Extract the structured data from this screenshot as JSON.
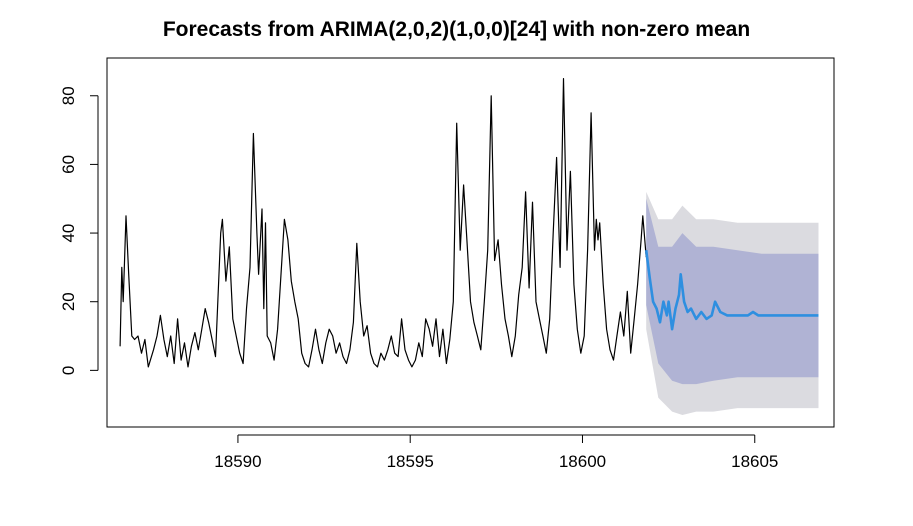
{
  "chart_data": {
    "type": "line",
    "title": "Forecasts from ARIMA(2,0,2)(1,0,0)[24] with non-zero mean",
    "xlabel": "",
    "ylabel": "",
    "xlim": [
      18586.2,
      18607.3
    ],
    "ylim": [
      -16.5,
      91
    ],
    "x_ticks": [
      18590,
      18595,
      18600,
      18605
    ],
    "y_ticks": [
      0,
      20,
      40,
      60,
      80
    ],
    "grid": false,
    "legend": "none",
    "series": [
      {
        "role": "observed",
        "color": "#000000",
        "points": [
          [
            18586.58,
            7
          ],
          [
            18586.63,
            30
          ],
          [
            18586.67,
            20
          ],
          [
            18586.75,
            45
          ],
          [
            18586.83,
            28
          ],
          [
            18586.92,
            10
          ],
          [
            18587.0,
            9
          ],
          [
            18587.1,
            10
          ],
          [
            18587.2,
            5
          ],
          [
            18587.3,
            9
          ],
          [
            18587.4,
            1
          ],
          [
            18587.55,
            6
          ],
          [
            18587.65,
            10
          ],
          [
            18587.75,
            16
          ],
          [
            18587.85,
            9
          ],
          [
            18587.95,
            4
          ],
          [
            18588.05,
            10
          ],
          [
            18588.15,
            2
          ],
          [
            18588.25,
            15
          ],
          [
            18588.35,
            3
          ],
          [
            18588.45,
            8
          ],
          [
            18588.55,
            1
          ],
          [
            18588.65,
            7
          ],
          [
            18588.75,
            11
          ],
          [
            18588.85,
            6
          ],
          [
            18588.95,
            12
          ],
          [
            18589.05,
            18
          ],
          [
            18589.15,
            14
          ],
          [
            18589.25,
            9
          ],
          [
            18589.35,
            4
          ],
          [
            18589.5,
            40
          ],
          [
            18589.55,
            44
          ],
          [
            18589.65,
            26
          ],
          [
            18589.75,
            36
          ],
          [
            18589.85,
            15
          ],
          [
            18589.95,
            10
          ],
          [
            18590.05,
            5
          ],
          [
            18590.15,
            2
          ],
          [
            18590.25,
            18
          ],
          [
            18590.35,
            30
          ],
          [
            18590.45,
            69
          ],
          [
            18590.55,
            40
          ],
          [
            18590.6,
            28
          ],
          [
            18590.7,
            47
          ],
          [
            18590.75,
            18
          ],
          [
            18590.8,
            43
          ],
          [
            18590.85,
            10
          ],
          [
            18590.95,
            8
          ],
          [
            18591.05,
            3
          ],
          [
            18591.15,
            12
          ],
          [
            18591.25,
            28
          ],
          [
            18591.35,
            44
          ],
          [
            18591.45,
            38
          ],
          [
            18591.55,
            26
          ],
          [
            18591.65,
            20
          ],
          [
            18591.75,
            15
          ],
          [
            18591.85,
            5
          ],
          [
            18591.95,
            2
          ],
          [
            18592.05,
            1
          ],
          [
            18592.15,
            6
          ],
          [
            18592.25,
            12
          ],
          [
            18592.35,
            6
          ],
          [
            18592.45,
            2
          ],
          [
            18592.55,
            8
          ],
          [
            18592.65,
            12
          ],
          [
            18592.75,
            10
          ],
          [
            18592.85,
            5
          ],
          [
            18592.95,
            8
          ],
          [
            18593.05,
            4
          ],
          [
            18593.15,
            2
          ],
          [
            18593.25,
            6
          ],
          [
            18593.35,
            14
          ],
          [
            18593.45,
            37
          ],
          [
            18593.55,
            20
          ],
          [
            18593.65,
            10
          ],
          [
            18593.75,
            13
          ],
          [
            18593.85,
            5
          ],
          [
            18593.95,
            2
          ],
          [
            18594.05,
            1
          ],
          [
            18594.15,
            5
          ],
          [
            18594.25,
            3
          ],
          [
            18594.35,
            6
          ],
          [
            18594.45,
            10
          ],
          [
            18594.55,
            5
          ],
          [
            18594.65,
            4
          ],
          [
            18594.75,
            15
          ],
          [
            18594.85,
            6
          ],
          [
            18594.95,
            3
          ],
          [
            18595.05,
            1
          ],
          [
            18595.15,
            3
          ],
          [
            18595.25,
            8
          ],
          [
            18595.35,
            4
          ],
          [
            18595.45,
            15
          ],
          [
            18595.55,
            12
          ],
          [
            18595.65,
            7
          ],
          [
            18595.75,
            15
          ],
          [
            18595.85,
            4
          ],
          [
            18595.95,
            12
          ],
          [
            18596.05,
            2
          ],
          [
            18596.15,
            9
          ],
          [
            18596.25,
            20
          ],
          [
            18596.35,
            72
          ],
          [
            18596.45,
            35
          ],
          [
            18596.55,
            54
          ],
          [
            18596.65,
            37
          ],
          [
            18596.75,
            20
          ],
          [
            18596.85,
            14
          ],
          [
            18596.95,
            10
          ],
          [
            18597.05,
            6
          ],
          [
            18597.15,
            20
          ],
          [
            18597.25,
            35
          ],
          [
            18597.35,
            80
          ],
          [
            18597.45,
            32
          ],
          [
            18597.55,
            38
          ],
          [
            18597.65,
            25
          ],
          [
            18597.75,
            15
          ],
          [
            18597.85,
            10
          ],
          [
            18597.95,
            4
          ],
          [
            18598.05,
            10
          ],
          [
            18598.15,
            22
          ],
          [
            18598.25,
            30
          ],
          [
            18598.35,
            52
          ],
          [
            18598.45,
            24
          ],
          [
            18598.55,
            49
          ],
          [
            18598.65,
            20
          ],
          [
            18598.75,
            15
          ],
          [
            18598.85,
            10
          ],
          [
            18598.95,
            5
          ],
          [
            18599.05,
            15
          ],
          [
            18599.15,
            40
          ],
          [
            18599.25,
            62
          ],
          [
            18599.35,
            30
          ],
          [
            18599.45,
            85
          ],
          [
            18599.55,
            35
          ],
          [
            18599.65,
            58
          ],
          [
            18599.75,
            25
          ],
          [
            18599.85,
            12
          ],
          [
            18599.95,
            5
          ],
          [
            18600.05,
            10
          ],
          [
            18600.15,
            35
          ],
          [
            18600.25,
            75
          ],
          [
            18600.35,
            35
          ],
          [
            18600.4,
            44
          ],
          [
            18600.45,
            38
          ],
          [
            18600.5,
            43
          ],
          [
            18600.6,
            25
          ],
          [
            18600.7,
            12
          ],
          [
            18600.8,
            6
          ],
          [
            18600.9,
            3
          ],
          [
            18601.0,
            10
          ],
          [
            18601.1,
            17
          ],
          [
            18601.2,
            10
          ],
          [
            18601.3,
            23
          ],
          [
            18601.4,
            5
          ],
          [
            18601.5,
            15
          ],
          [
            18601.6,
            25
          ],
          [
            18601.7,
            38
          ],
          [
            18601.75,
            45
          ],
          [
            18601.85,
            33
          ]
        ]
      },
      {
        "role": "forecast",
        "color": "#2e8fe0",
        "points": [
          [
            18601.85,
            35
          ],
          [
            18601.95,
            27
          ],
          [
            18602.05,
            20
          ],
          [
            18602.15,
            18
          ],
          [
            18602.25,
            14
          ],
          [
            18602.35,
            20
          ],
          [
            18602.45,
            16
          ],
          [
            18602.5,
            20
          ],
          [
            18602.6,
            12
          ],
          [
            18602.7,
            18
          ],
          [
            18602.8,
            22
          ],
          [
            18602.85,
            28
          ],
          [
            18602.95,
            20
          ],
          [
            18603.05,
            17
          ],
          [
            18603.15,
            18
          ],
          [
            18603.3,
            15
          ],
          [
            18603.45,
            17
          ],
          [
            18603.6,
            15
          ],
          [
            18603.75,
            16
          ],
          [
            18603.85,
            20
          ],
          [
            18604.0,
            17
          ],
          [
            18604.2,
            16
          ],
          [
            18604.4,
            16
          ],
          [
            18604.6,
            16
          ],
          [
            18604.8,
            16
          ],
          [
            18604.95,
            17
          ],
          [
            18605.1,
            16
          ],
          [
            18605.3,
            16
          ],
          [
            18605.5,
            16
          ],
          [
            18605.7,
            16
          ],
          [
            18605.9,
            16
          ],
          [
            18606.1,
            16
          ],
          [
            18606.3,
            16
          ],
          [
            18606.5,
            16
          ],
          [
            18606.7,
            16
          ],
          [
            18606.85,
            16
          ]
        ]
      }
    ],
    "intervals": [
      {
        "level": "80%",
        "color": "#b0b3d4",
        "x": [
          18601.85,
          18602.2,
          18602.6,
          18602.9,
          18603.3,
          18603.8,
          18604.5,
          18605.2,
          18606.0,
          18606.85
        ],
        "lower": [
          19,
          2,
          -3,
          -4,
          -4,
          -3,
          -2,
          -2,
          -2,
          -2
        ],
        "upper": [
          50,
          36,
          36,
          40,
          36,
          36,
          35,
          34,
          34,
          34
        ]
      },
      {
        "level": "95%",
        "color": "#dbdbe0",
        "x": [
          18601.85,
          18602.2,
          18602.6,
          18602.9,
          18603.3,
          18603.8,
          18604.5,
          18605.2,
          18606.0,
          18606.85
        ],
        "lower": [
          12,
          -8,
          -12,
          -13,
          -12,
          -12,
          -11,
          -11,
          -11,
          -11
        ],
        "upper": [
          52,
          44,
          44,
          48,
          44,
          44,
          43,
          43,
          43,
          43
        ]
      }
    ]
  }
}
